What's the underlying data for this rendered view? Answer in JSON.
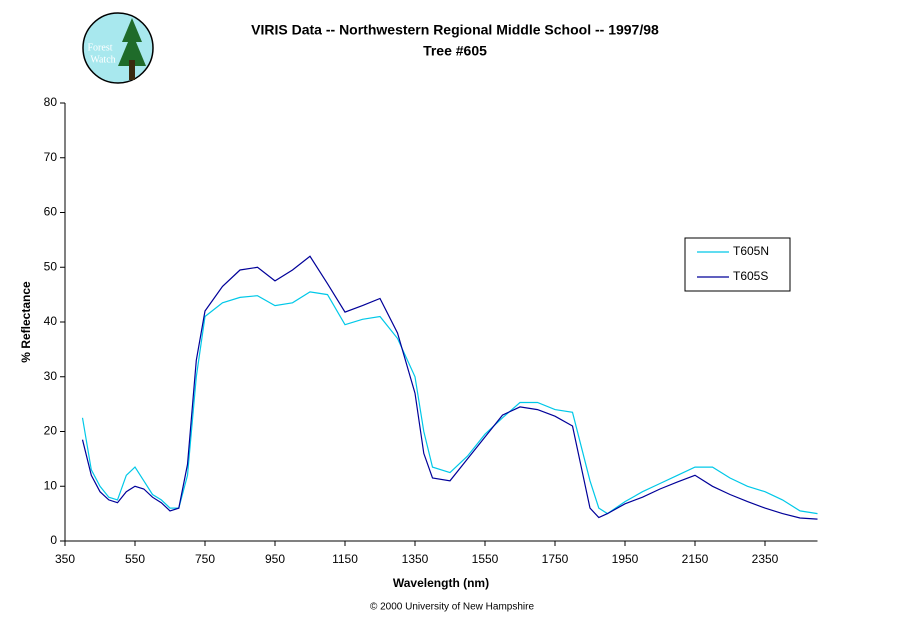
{
  "logo": {
    "line1": "Forest",
    "line2": "Watch"
  },
  "chart_data": {
    "type": "line",
    "title": "VIRIS Data -- Northwestern Regional Middle School -- 1997/98",
    "subtitle": "Tree #605",
    "x_label": "Wavelength (nm)",
    "y_label": "% Reflectance",
    "source": "© 2000 University of New Hampshire",
    "x": [
      400,
      425,
      450,
      475,
      500,
      525,
      550,
      575,
      600,
      625,
      650,
      675,
      700,
      725,
      750,
      800,
      850,
      900,
      950,
      1000,
      1050,
      1100,
      1150,
      1200,
      1250,
      1300,
      1350,
      1375,
      1400,
      1450,
      1500,
      1550,
      1600,
      1650,
      1700,
      1750,
      1800,
      1850,
      1875,
      1900,
      1950,
      2000,
      2050,
      2100,
      2150,
      2200,
      2250,
      2300,
      2350,
      2400,
      2450,
      2500
    ],
    "series": [
      {
        "name": "T605N",
        "color": "#00c8e8",
        "values": [
          22.5,
          13,
          10,
          8,
          7.5,
          12,
          13.5,
          11,
          8.5,
          7.5,
          6,
          6,
          12,
          30,
          41,
          43.5,
          44.5,
          44.8,
          43,
          43.5,
          45.5,
          45,
          39.5,
          40.5,
          41,
          37,
          30,
          20,
          13.5,
          12.5,
          15.5,
          19.5,
          22.5,
          25.3,
          25.3,
          24,
          23.5,
          11,
          6,
          5,
          7.2,
          9,
          10.5,
          12,
          13.5,
          13.5,
          11.5,
          10,
          9,
          7.5,
          5.5,
          5
        ]
      },
      {
        "name": "T605S",
        "color": "#000099",
        "values": [
          18.5,
          12,
          9,
          7.5,
          7,
          9,
          10,
          9.5,
          8,
          7,
          5.5,
          6,
          14,
          33,
          42,
          46.5,
          49.5,
          50,
          47.5,
          49.5,
          52,
          47,
          41.8,
          43,
          44.3,
          38,
          27,
          16,
          11.5,
          11,
          15,
          19,
          23,
          24.5,
          24,
          22.8,
          21,
          6,
          4.3,
          5,
          6.8,
          8,
          9.5,
          10.8,
          12,
          10,
          8.5,
          7.2,
          6,
          5,
          4.2,
          4
        ]
      }
    ],
    "xlim": [
      350,
      2500
    ],
    "xticks": [
      350,
      550,
      750,
      950,
      1150,
      1350,
      1550,
      1750,
      1950,
      2150,
      2350
    ],
    "ylim": [
      0,
      80
    ],
    "yticks": [
      0,
      10,
      20,
      30,
      40,
      50,
      60,
      70,
      80
    ],
    "legend": "right"
  }
}
